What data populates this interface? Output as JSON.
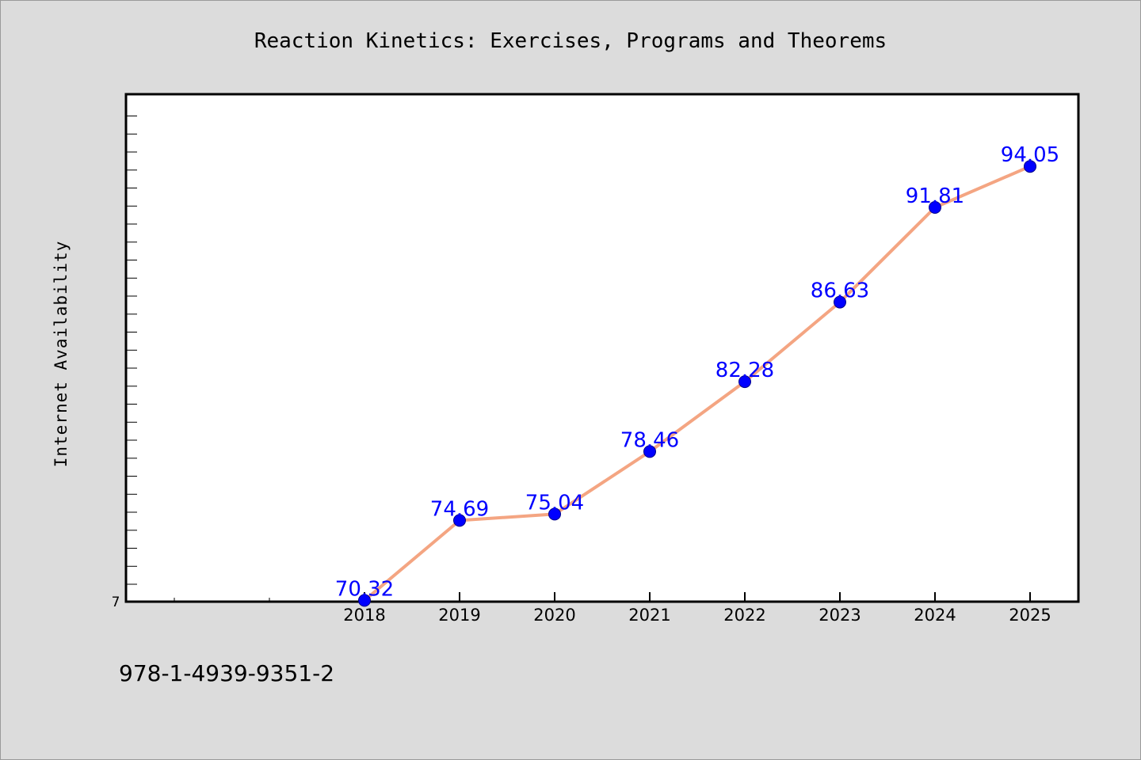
{
  "chart_data": {
    "type": "line",
    "title": "Reaction Kinetics: Exercises, Programs and Theorems",
    "ylabel": "Internet Availability",
    "xlabel": "",
    "categories": [
      "2018",
      "2019",
      "2020",
      "2021",
      "2022",
      "2023",
      "2024",
      "2025"
    ],
    "series": [
      {
        "values": [
          70.32,
          74.69,
          75.04,
          78.46,
          82.28,
          86.63,
          91.81,
          94.05
        ]
      }
    ],
    "data_labels": [
      "70.32",
      "74.69",
      "75.04",
      "78.46",
      "82.28",
      "86.63",
      "91.81",
      "94.05"
    ],
    "ytick_labels": [
      "7"
    ],
    "ylim": [
      70.25,
      98.0
    ],
    "grid": false,
    "line_color": "#f4a582",
    "marker_color": "#0000ff",
    "label_color": "#0000ff"
  },
  "footer": {
    "isbn": "978-1-4939-9351-2"
  }
}
